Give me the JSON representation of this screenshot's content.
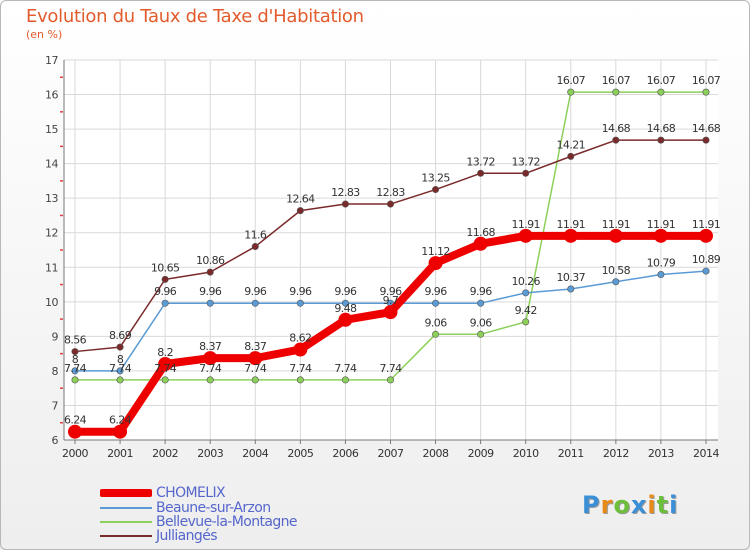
{
  "title": "Evolution du Taux de Taxe d'Habitation",
  "subtitle": "(en %)",
  "logo": {
    "text": "Proxiti",
    "colors": [
      "#3b8fd6",
      "#e88a1a",
      "#6cbf3a",
      "#3b8fd6",
      "#e88a1a",
      "#6cbf3a",
      "#3b8fd6"
    ]
  },
  "chart_data": {
    "type": "line",
    "title": "Evolution du Taux de Taxe d'Habitation",
    "ylabel": "(en %)",
    "xlabel": "",
    "x": [
      "2000",
      "2001",
      "2002",
      "2003",
      "2004",
      "2005",
      "2006",
      "2007",
      "2008",
      "2009",
      "2010",
      "2011",
      "2012",
      "2013",
      "2014"
    ],
    "ylim": [
      6,
      17
    ],
    "yticks": [
      "6",
      "7",
      "8",
      "9",
      "10",
      "11",
      "12",
      "13",
      "14",
      "15",
      "16",
      "17"
    ],
    "grid": true,
    "legend_position": "bottom-left",
    "series": [
      {
        "name": "CHOMELIX",
        "color": "#ee0000",
        "values": [
          6.24,
          6.24,
          8.2,
          8.37,
          8.37,
          8.62,
          9.48,
          9.7,
          11.12,
          11.68,
          11.91,
          11.91,
          11.91,
          11.91,
          11.91
        ],
        "labels": [
          "6.24",
          "6.24",
          "8.2",
          "8.37",
          "8.37",
          "8.62",
          "9.48",
          "9.7",
          "11.12",
          "11.68",
          "11.91",
          "11.91",
          "11.91",
          "11.91",
          "11.91"
        ]
      },
      {
        "name": "Beaune-sur-Arzon",
        "color": "#5b9bd5",
        "values": [
          8,
          8,
          9.96,
          9.96,
          9.96,
          9.96,
          9.96,
          9.96,
          9.96,
          9.96,
          10.26,
          10.37,
          10.58,
          10.79,
          10.89
        ],
        "labels": [
          "8",
          "8",
          "9.96",
          "9.96",
          "9.96",
          "9.96",
          "9.96",
          "9.96",
          "9.96",
          "9.96",
          "10.26",
          "10.37",
          "10.58",
          "10.79",
          "10.89"
        ]
      },
      {
        "name": "Bellevue-la-Montagne",
        "color": "#8cd05a",
        "values": [
          7.74,
          7.74,
          7.74,
          7.74,
          7.74,
          7.74,
          7.74,
          7.74,
          9.06,
          9.06,
          9.42,
          16.07,
          16.07,
          16.07,
          16.07
        ],
        "labels": [
          "7.74",
          "7.74",
          "7.74",
          "7.74",
          "7.74",
          "7.74",
          "7.74",
          "7.74",
          "9.06",
          "9.06",
          "9.42",
          "16.07",
          "16.07",
          "16.07",
          "16.07"
        ]
      },
      {
        "name": "Julliangés",
        "color": "#7a2a2a",
        "values": [
          8.56,
          8.69,
          10.65,
          10.86,
          11.6,
          12.64,
          12.83,
          12.83,
          13.25,
          13.72,
          13.72,
          14.21,
          14.68,
          14.68,
          14.68
        ],
        "labels": [
          "8.56",
          "8.69",
          "10.65",
          "10.86",
          "11.6",
          "12.64",
          "12.83",
          "12.83",
          "13.25",
          "13.72",
          "13.72",
          "14.21",
          "14.68",
          "14.68",
          "14.68"
        ]
      }
    ]
  },
  "legend": [
    {
      "label": "CHOMELIX"
    },
    {
      "label": "Beaune-sur-Arzon"
    },
    {
      "label": "Bellevue-la-Montagne"
    },
    {
      "label": "Julliangés"
    }
  ]
}
